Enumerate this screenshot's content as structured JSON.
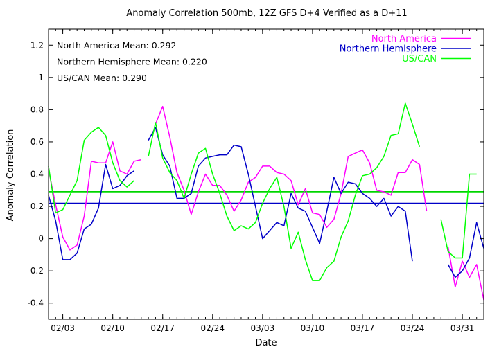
{
  "chart_data": {
    "type": "line",
    "title": "Anomaly Correlation 500mb, 12Z GFS D+4 Verified as a D+11",
    "xlabel": "Date",
    "ylabel": "Anomaly Correlation",
    "xlim": [
      "2025-02-01",
      "2025-04-03"
    ],
    "ylim": [
      -0.5,
      1.3
    ],
    "y_ticks": [
      -0.4,
      -0.2,
      0,
      0.2,
      0.4,
      0.6,
      0.8,
      1,
      1.2
    ],
    "y_tick_labels": [
      "-0.4",
      "-0.2",
      "0",
      "0.2",
      "0.4",
      "0.6",
      "0.8",
      "1",
      "1.2"
    ],
    "x_ticks": [
      "2025-02-03",
      "2025-02-10",
      "2025-02-17",
      "2025-02-24",
      "2025-03-03",
      "2025-03-10",
      "2025-03-17",
      "2025-03-24",
      "2025-03-31"
    ],
    "x_tick_labels": [
      "02/03",
      "02/10",
      "02/17",
      "02/24",
      "03/03",
      "03/10",
      "03/17",
      "03/24",
      "03/31"
    ],
    "grid": false,
    "legend_position": "top-right",
    "stats": [
      {
        "text": "North America Mean: 0.292",
        "value": 0.292,
        "color": "#00c800"
      },
      {
        "text": "Northern Hemisphere Mean: 0.220",
        "value": 0.22,
        "color": "#0000c8"
      },
      {
        "text": "US/CAN Mean: 0.290",
        "value": 0.29,
        "color": "#00dc00"
      }
    ],
    "series": [
      {
        "name": "North America",
        "color": "#ff00ff",
        "segments": [
          [
            [
              "2025-02-01",
              0.43
            ],
            [
              "2025-02-02",
              0.21
            ],
            [
              "2025-02-03",
              0.01
            ],
            [
              "2025-02-04",
              -0.07
            ],
            [
              "2025-02-05",
              -0.04
            ],
            [
              "2025-02-06",
              0.14
            ],
            [
              "2025-02-07",
              0.48
            ],
            [
              "2025-02-08",
              0.47
            ],
            [
              "2025-02-09",
              0.47
            ],
            [
              "2025-02-10",
              0.6
            ],
            [
              "2025-02-11",
              0.42
            ],
            [
              "2025-02-12",
              0.4
            ],
            [
              "2025-02-13",
              0.48
            ],
            [
              "2025-02-14",
              0.49
            ]
          ],
          [
            [
              "2025-02-16",
              0.71
            ],
            [
              "2025-02-17",
              0.82
            ],
            [
              "2025-02-18",
              0.63
            ],
            [
              "2025-02-19",
              0.41
            ],
            [
              "2025-02-20",
              0.3
            ],
            [
              "2025-02-21",
              0.15
            ],
            [
              "2025-02-22",
              0.29
            ],
            [
              "2025-02-23",
              0.4
            ],
            [
              "2025-02-24",
              0.33
            ],
            [
              "2025-02-25",
              0.33
            ],
            [
              "2025-02-26",
              0.27
            ],
            [
              "2025-02-27",
              0.17
            ],
            [
              "2025-02-28",
              0.24
            ],
            [
              "2025-03-01",
              0.35
            ],
            [
              "2025-03-02",
              0.38
            ],
            [
              "2025-03-03",
              0.45
            ],
            [
              "2025-03-04",
              0.45
            ],
            [
              "2025-03-05",
              0.41
            ],
            [
              "2025-03-06",
              0.4
            ],
            [
              "2025-03-07",
              0.36
            ],
            [
              "2025-03-08",
              0.21
            ],
            [
              "2025-03-09",
              0.31
            ],
            [
              "2025-03-10",
              0.16
            ],
            [
              "2025-03-11",
              0.15
            ],
            [
              "2025-03-12",
              0.07
            ],
            [
              "2025-03-13",
              0.12
            ],
            [
              "2025-03-14",
              0.28
            ],
            [
              "2025-03-15",
              0.51
            ],
            [
              "2025-03-16",
              0.53
            ],
            [
              "2025-03-17",
              0.55
            ],
            [
              "2025-03-18",
              0.47
            ],
            [
              "2025-03-19",
              0.3
            ],
            [
              "2025-03-20",
              0.29
            ],
            [
              "2025-03-21",
              0.27
            ],
            [
              "2025-03-22",
              0.41
            ],
            [
              "2025-03-23",
              0.41
            ],
            [
              "2025-03-24",
              0.49
            ],
            [
              "2025-03-25",
              0.46
            ],
            [
              "2025-03-26",
              0.17
            ]
          ],
          [
            [
              "2025-03-29",
              -0.05
            ],
            [
              "2025-03-30",
              -0.3
            ],
            [
              "2025-03-31",
              -0.14
            ],
            [
              "2025-04-01",
              -0.24
            ],
            [
              "2025-04-02",
              -0.16
            ],
            [
              "2025-04-03",
              -0.38
            ]
          ]
        ]
      },
      {
        "name": "Northern Hemisphere",
        "color": "#0000c8",
        "segments": [
          [
            [
              "2025-02-01",
              0.27
            ],
            [
              "2025-02-02",
              0.11
            ],
            [
              "2025-02-03",
              -0.13
            ],
            [
              "2025-02-04",
              -0.13
            ],
            [
              "2025-02-05",
              -0.09
            ],
            [
              "2025-02-06",
              0.06
            ],
            [
              "2025-02-07",
              0.09
            ],
            [
              "2025-02-08",
              0.19
            ],
            [
              "2025-02-09",
              0.46
            ],
            [
              "2025-02-10",
              0.31
            ],
            [
              "2025-02-11",
              0.33
            ],
            [
              "2025-02-12",
              0.39
            ],
            [
              "2025-02-13",
              0.42
            ]
          ],
          [
            [
              "2025-02-15",
              0.61
            ],
            [
              "2025-02-16",
              0.69
            ],
            [
              "2025-02-17",
              0.52
            ],
            [
              "2025-02-18",
              0.45
            ],
            [
              "2025-02-19",
              0.25
            ],
            [
              "2025-02-20",
              0.25
            ],
            [
              "2025-02-21",
              0.28
            ],
            [
              "2025-02-22",
              0.45
            ],
            [
              "2025-02-23",
              0.5
            ],
            [
              "2025-02-24",
              0.51
            ],
            [
              "2025-02-25",
              0.52
            ],
            [
              "2025-02-26",
              0.52
            ],
            [
              "2025-02-27",
              0.58
            ],
            [
              "2025-02-28",
              0.57
            ],
            [
              "2025-03-01",
              0.4
            ],
            [
              "2025-03-02",
              0.2
            ],
            [
              "2025-03-03",
              0.0
            ],
            [
              "2025-03-04",
              0.05
            ],
            [
              "2025-03-05",
              0.1
            ],
            [
              "2025-03-06",
              0.08
            ],
            [
              "2025-03-07",
              0.28
            ],
            [
              "2025-03-08",
              0.19
            ],
            [
              "2025-03-09",
              0.17
            ],
            [
              "2025-03-10",
              0.07
            ],
            [
              "2025-03-11",
              -0.03
            ],
            [
              "2025-03-12",
              0.17
            ],
            [
              "2025-03-13",
              0.38
            ],
            [
              "2025-03-14",
              0.28
            ],
            [
              "2025-03-15",
              0.35
            ],
            [
              "2025-03-16",
              0.34
            ],
            [
              "2025-03-17",
              0.28
            ],
            [
              "2025-03-18",
              0.25
            ],
            [
              "2025-03-19",
              0.2
            ],
            [
              "2025-03-20",
              0.25
            ],
            [
              "2025-03-21",
              0.14
            ],
            [
              "2025-03-22",
              0.2
            ],
            [
              "2025-03-23",
              0.17
            ],
            [
              "2025-03-24",
              -0.14
            ]
          ],
          [
            [
              "2025-03-29",
              -0.16
            ],
            [
              "2025-03-30",
              -0.24
            ],
            [
              "2025-03-31",
              -0.2
            ],
            [
              "2025-04-01",
              -0.12
            ],
            [
              "2025-04-02",
              0.1
            ],
            [
              "2025-04-03",
              -0.06
            ]
          ]
        ]
      },
      {
        "name": "US/CAN",
        "color": "#00ff00",
        "segments": [
          [
            [
              "2025-02-01",
              0.45
            ],
            [
              "2025-02-02",
              0.16
            ],
            [
              "2025-02-03",
              0.18
            ],
            [
              "2025-02-04",
              0.27
            ],
            [
              "2025-02-05",
              0.36
            ],
            [
              "2025-02-06",
              0.61
            ],
            [
              "2025-02-07",
              0.66
            ],
            [
              "2025-02-08",
              0.69
            ],
            [
              "2025-02-09",
              0.64
            ],
            [
              "2025-02-10",
              0.47
            ],
            [
              "2025-02-11",
              0.36
            ],
            [
              "2025-02-12",
              0.32
            ],
            [
              "2025-02-13",
              0.36
            ]
          ],
          [
            [
              "2025-02-15",
              0.51
            ],
            [
              "2025-02-16",
              0.72
            ],
            [
              "2025-02-17",
              0.5
            ],
            [
              "2025-02-18",
              0.41
            ],
            [
              "2025-02-19",
              0.36
            ],
            [
              "2025-02-20",
              0.25
            ],
            [
              "2025-02-21",
              0.4
            ],
            [
              "2025-02-22",
              0.53
            ],
            [
              "2025-02-23",
              0.56
            ],
            [
              "2025-02-24",
              0.4
            ],
            [
              "2025-02-25",
              0.28
            ],
            [
              "2025-02-26",
              0.14
            ],
            [
              "2025-02-27",
              0.05
            ],
            [
              "2025-02-28",
              0.08
            ],
            [
              "2025-03-01",
              0.06
            ],
            [
              "2025-03-02",
              0.1
            ],
            [
              "2025-03-03",
              0.22
            ],
            [
              "2025-03-04",
              0.31
            ],
            [
              "2025-03-05",
              0.38
            ],
            [
              "2025-03-06",
              0.2
            ],
            [
              "2025-03-07",
              -0.06
            ],
            [
              "2025-03-08",
              0.04
            ],
            [
              "2025-03-09",
              -0.13
            ],
            [
              "2025-03-10",
              -0.26
            ],
            [
              "2025-03-11",
              -0.26
            ],
            [
              "2025-03-12",
              -0.18
            ],
            [
              "2025-03-13",
              -0.14
            ],
            [
              "2025-03-14",
              0.01
            ],
            [
              "2025-03-15",
              0.11
            ],
            [
              "2025-03-16",
              0.27
            ],
            [
              "2025-03-17",
              0.39
            ],
            [
              "2025-03-18",
              0.4
            ],
            [
              "2025-03-19",
              0.44
            ],
            [
              "2025-03-20",
              0.51
            ],
            [
              "2025-03-21",
              0.64
            ],
            [
              "2025-03-22",
              0.65
            ],
            [
              "2025-03-23",
              0.84
            ],
            [
              "2025-03-24",
              0.71
            ],
            [
              "2025-03-25",
              0.57
            ]
          ],
          [
            [
              "2025-03-28",
              0.12
            ],
            [
              "2025-03-29",
              -0.08
            ],
            [
              "2025-03-30",
              -0.12
            ],
            [
              "2025-03-31",
              -0.12
            ],
            [
              "2025-04-01",
              0.4
            ],
            [
              "2025-04-02",
              0.4
            ]
          ]
        ]
      }
    ]
  }
}
